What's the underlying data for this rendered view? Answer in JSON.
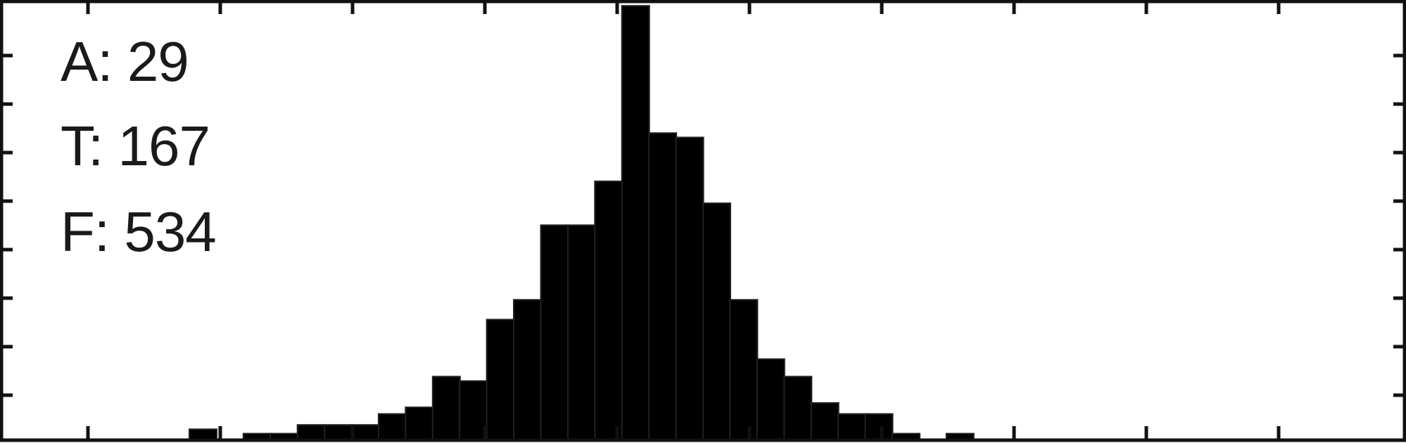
{
  "chart_data": {
    "type": "bar",
    "title": "",
    "xlabel": "",
    "ylabel": "",
    "bar_color": "#000000",
    "frame_color": "#111111",
    "background": "#ffffff",
    "tick_labels_visible": false,
    "grid": false,
    "n_xticks": 11,
    "n_yticks": 8,
    "xlim": [
      0,
      52
    ],
    "ylim": [
      0,
      100
    ],
    "bars": [
      {
        "x": 7.5,
        "value": 2.5
      },
      {
        "x": 9.5,
        "value": 1.5
      },
      {
        "x": 10.5,
        "value": 1.5
      },
      {
        "x": 11.5,
        "value": 3.5
      },
      {
        "x": 12.5,
        "value": 3.5
      },
      {
        "x": 13.5,
        "value": 3.5
      },
      {
        "x": 14.5,
        "value": 6
      },
      {
        "x": 15.5,
        "value": 7.5
      },
      {
        "x": 16.5,
        "value": 14.5
      },
      {
        "x": 17.5,
        "value": 13.5
      },
      {
        "x": 18.5,
        "value": 27.5
      },
      {
        "x": 19.5,
        "value": 32
      },
      {
        "x": 20.5,
        "value": 49
      },
      {
        "x": 21.5,
        "value": 49
      },
      {
        "x": 22.5,
        "value": 59
      },
      {
        "x": 23.5,
        "value": 99
      },
      {
        "x": 24.5,
        "value": 70
      },
      {
        "x": 25.5,
        "value": 69
      },
      {
        "x": 26.5,
        "value": 54
      },
      {
        "x": 27.5,
        "value": 32
      },
      {
        "x": 28.5,
        "value": 18.5
      },
      {
        "x": 29.5,
        "value": 14.5
      },
      {
        "x": 30.5,
        "value": 8.5
      },
      {
        "x": 31.5,
        "value": 6
      },
      {
        "x": 32.5,
        "value": 6
      },
      {
        "x": 33.5,
        "value": 1.5
      },
      {
        "x": 35.5,
        "value": 1.5
      }
    ]
  },
  "annotations": {
    "a": "A: 29",
    "t": "T: 167",
    "f": "F: 534"
  }
}
